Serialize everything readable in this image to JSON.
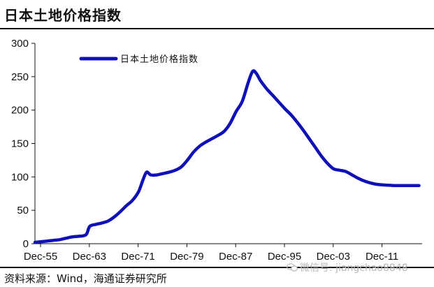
{
  "header": {
    "title": "日本土地价格指数"
  },
  "footer": {
    "source": "资料来源：Wind，海通证券研究所",
    "watermark": "微信号: jiangchao8848"
  },
  "colors": {
    "series": "#1010b8",
    "axis": "#111111",
    "text": "#111111"
  },
  "chart_data": {
    "type": "line",
    "title": "日本土地价格指数",
    "xlabel": "",
    "ylabel": "",
    "ylim": [
      0,
      300
    ],
    "xlim": [
      1955,
      2018.5
    ],
    "yticks": [
      0,
      50,
      100,
      150,
      200,
      250,
      300
    ],
    "xtick_labels": [
      "Dec-55",
      "Dec-63",
      "Dec-71",
      "Dec-79",
      "Dec-87",
      "Dec-95",
      "Dec-03",
      "Dec-11"
    ],
    "xtick_years": [
      1955.92,
      1963.92,
      1971.92,
      1979.92,
      1987.92,
      1995.92,
      2003.92,
      2011.92
    ],
    "grid": false,
    "legend_position": "top-left",
    "series": [
      {
        "name": "日本土地价格指数",
        "color": "#1010b8",
        "x": [
          1955.0,
          1956.0,
          1957.0,
          1958.0,
          1959.0,
          1960.0,
          1961.0,
          1962.0,
          1963.0,
          1963.5,
          1964.0,
          1965.0,
          1966.0,
          1967.0,
          1968.0,
          1969.0,
          1970.0,
          1971.0,
          1972.0,
          1972.7,
          1973.3,
          1974.0,
          1975.0,
          1976.0,
          1977.0,
          1978.0,
          1979.0,
          1980.0,
          1981.0,
          1982.0,
          1983.0,
          1984.0,
          1985.0,
          1986.0,
          1987.0,
          1988.0,
          1989.0,
          1990.0,
          1990.7,
          1991.3,
          1992.0,
          1993.0,
          1994.0,
          1995.0,
          1996.0,
          1997.0,
          1998.0,
          1999.0,
          2000.0,
          2001.0,
          2002.0,
          2003.0,
          2004.0,
          2005.0,
          2006.0,
          2007.0,
          2008.0,
          2009.0,
          2010.0,
          2011.0,
          2012.0,
          2013.0,
          2014.0,
          2015.0,
          2016.0,
          2017.0,
          2018.0
        ],
        "y": [
          2,
          3,
          4,
          5,
          6,
          8,
          10,
          11,
          12,
          15,
          26,
          29,
          31,
          34,
          40,
          48,
          57,
          65,
          78,
          95,
          107,
          103,
          103,
          105,
          107,
          110,
          115,
          125,
          137,
          146,
          152,
          157,
          162,
          168,
          180,
          198,
          213,
          242,
          258,
          255,
          244,
          232,
          222,
          212,
          202,
          193,
          182,
          170,
          157,
          144,
          131,
          120,
          112,
          110,
          108,
          103,
          98,
          94,
          91,
          89,
          88,
          87.5,
          87,
          87,
          87,
          87,
          87
        ]
      }
    ]
  }
}
